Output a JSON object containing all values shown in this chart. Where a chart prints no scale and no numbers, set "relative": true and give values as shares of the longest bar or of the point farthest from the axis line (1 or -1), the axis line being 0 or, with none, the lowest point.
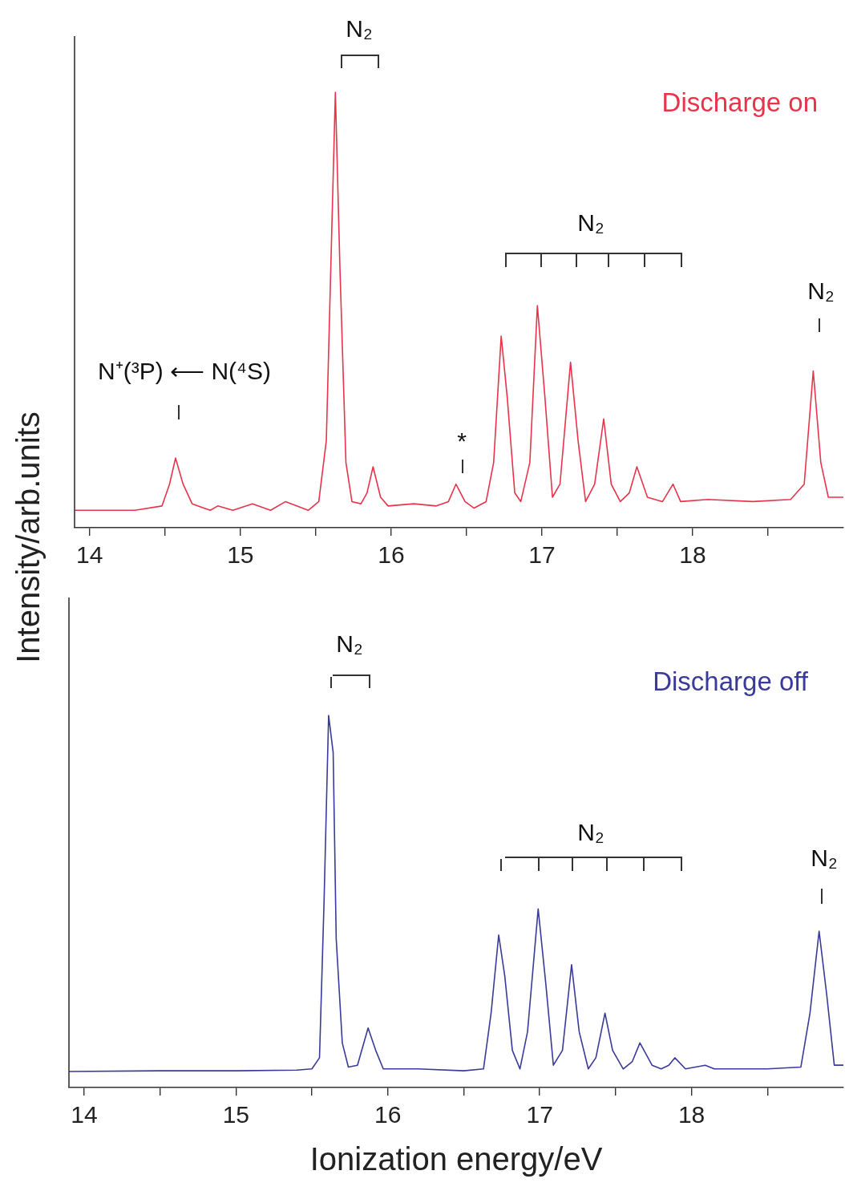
{
  "chart_data": [
    {
      "type": "line",
      "ylabel": "Intensity/arb.units",
      "relative": true,
      "tick_labels": "x",
      "xlim": [
        13.9,
        19.0
      ],
      "xticks": [
        14,
        {
          "value": 14.5,
          "label": null
        },
        15,
        {
          "value": 15.5,
          "label": null
        },
        16,
        {
          "value": 16.5,
          "label": null
        },
        17,
        {
          "value": 17.5,
          "label": null
        },
        18,
        {
          "value": 18.5,
          "label": null
        }
      ],
      "x": [
        13.9,
        14.3,
        14.48,
        14.53,
        14.57,
        14.62,
        14.68,
        14.8,
        14.85,
        14.95,
        15.08,
        15.2,
        15.3,
        15.45,
        15.52,
        15.57,
        15.6,
        15.63,
        15.66,
        15.7,
        15.74,
        15.8,
        15.84,
        15.88,
        15.93,
        15.98,
        16.15,
        16.3,
        16.38,
        16.43,
        16.49,
        16.55,
        16.63,
        16.68,
        16.73,
        16.77,
        16.82,
        16.86,
        16.92,
        16.97,
        17.02,
        17.07,
        17.12,
        17.19,
        17.24,
        17.29,
        17.35,
        17.41,
        17.46,
        17.52,
        17.58,
        17.63,
        17.7,
        17.8,
        17.87,
        17.92,
        18.1,
        18.4,
        18.65,
        18.74,
        18.8,
        18.85,
        18.9,
        19.0
      ],
      "series": [
        {
          "name": "Discharge on",
          "color": "#e8334a",
          "values": [
            0.04,
            0.04,
            0.05,
            0.1,
            0.16,
            0.1,
            0.055,
            0.04,
            0.05,
            0.04,
            0.055,
            0.04,
            0.06,
            0.04,
            0.06,
            0.2,
            0.6,
            1.0,
            0.6,
            0.15,
            0.06,
            0.055,
            0.08,
            0.14,
            0.07,
            0.05,
            0.055,
            0.05,
            0.06,
            0.1,
            0.06,
            0.045,
            0.06,
            0.15,
            0.44,
            0.3,
            0.08,
            0.06,
            0.15,
            0.51,
            0.3,
            0.07,
            0.1,
            0.38,
            0.2,
            0.06,
            0.1,
            0.25,
            0.1,
            0.06,
            0.08,
            0.14,
            0.07,
            0.06,
            0.1,
            0.06,
            0.065,
            0.06,
            0.065,
            0.1,
            0.36,
            0.15,
            0.07,
            0.07
          ]
        }
      ],
      "annotations": [
        "N₂",
        "N₂",
        "N₂",
        "N⁺(³P) ⟵ N(⁴S)",
        "*"
      ]
    },
    {
      "type": "line",
      "xlabel": "Ionization energy/eV",
      "relative": true,
      "tick_labels": "x",
      "xlim": [
        13.9,
        19.0
      ],
      "xticks": [
        14,
        {
          "value": 14.5,
          "label": null
        },
        15,
        {
          "value": 15.5,
          "label": null
        },
        16,
        {
          "value": 16.5,
          "label": null
        },
        17,
        {
          "value": 17.5,
          "label": null
        },
        18,
        {
          "value": 18.5,
          "label": null
        }
      ],
      "x": [
        13.9,
        14.5,
        15.0,
        15.4,
        15.5,
        15.55,
        15.58,
        15.61,
        15.64,
        15.66,
        15.7,
        15.74,
        15.8,
        15.87,
        15.92,
        15.97,
        16.2,
        16.5,
        16.63,
        16.68,
        16.73,
        16.77,
        16.82,
        16.87,
        16.92,
        16.99,
        17.04,
        17.09,
        17.15,
        17.21,
        17.26,
        17.32,
        17.37,
        17.43,
        17.48,
        17.55,
        17.61,
        17.66,
        17.74,
        17.8,
        17.85,
        17.89,
        17.96,
        18.09,
        18.15,
        18.5,
        18.72,
        18.78,
        18.84,
        18.89,
        18.94,
        19.0
      ],
      "series": [
        {
          "name": "Discharge off",
          "color": "#3a3a9a",
          "values": [
            0.043,
            0.045,
            0.045,
            0.047,
            0.05,
            0.08,
            0.5,
            1.0,
            0.9,
            0.4,
            0.12,
            0.055,
            0.06,
            0.16,
            0.1,
            0.05,
            0.05,
            0.045,
            0.05,
            0.2,
            0.41,
            0.3,
            0.1,
            0.05,
            0.15,
            0.48,
            0.28,
            0.06,
            0.1,
            0.33,
            0.15,
            0.05,
            0.08,
            0.2,
            0.1,
            0.05,
            0.07,
            0.12,
            0.06,
            0.05,
            0.06,
            0.08,
            0.05,
            0.06,
            0.05,
            0.05,
            0.055,
            0.2,
            0.42,
            0.25,
            0.06,
            0.06
          ]
        }
      ],
      "annotations": [
        "N₂",
        "N₂",
        "N₂"
      ]
    }
  ]
}
